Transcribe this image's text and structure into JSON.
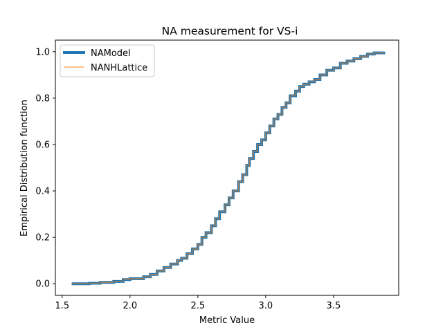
{
  "chart_data": {
    "type": "line",
    "title": "NA measurement for VS-i",
    "xlabel": "Metric Value",
    "ylabel": "Empirical Distribution function",
    "xlim": [
      1.45,
      3.98
    ],
    "ylim": [
      -0.05,
      1.05
    ],
    "xticks": [
      1.5,
      2.0,
      2.5,
      3.0,
      3.5
    ],
    "xtick_labels": [
      "1.5",
      "2.0",
      "2.5",
      "3.0",
      "3.5"
    ],
    "yticks": [
      0.0,
      0.2,
      0.4,
      0.6,
      0.8,
      1.0
    ],
    "ytick_labels": [
      "0.0",
      "0.2",
      "0.4",
      "0.6",
      "0.8",
      "1.0"
    ],
    "grid": false,
    "legend_position": "upper-left",
    "series": [
      {
        "name": "NAModel",
        "color": "#1f77b4",
        "style": "thick-step",
        "x": [
          1.57,
          1.7,
          1.78,
          1.88,
          1.95,
          2.0,
          2.1,
          2.15,
          2.2,
          2.25,
          2.3,
          2.35,
          2.38,
          2.42,
          2.46,
          2.5,
          2.53,
          2.56,
          2.6,
          2.63,
          2.66,
          2.7,
          2.73,
          2.76,
          2.8,
          2.83,
          2.86,
          2.88,
          2.91,
          2.94,
          2.97,
          3.0,
          3.03,
          3.06,
          3.09,
          3.12,
          3.15,
          3.18,
          3.22,
          3.25,
          3.28,
          3.32,
          3.36,
          3.4,
          3.45,
          3.5,
          3.55,
          3.6,
          3.65,
          3.7,
          3.75,
          3.8,
          3.87
        ],
        "y": [
          0.0,
          0.002,
          0.006,
          0.01,
          0.018,
          0.022,
          0.03,
          0.04,
          0.055,
          0.07,
          0.085,
          0.1,
          0.11,
          0.13,
          0.15,
          0.17,
          0.2,
          0.22,
          0.25,
          0.28,
          0.31,
          0.34,
          0.37,
          0.4,
          0.44,
          0.47,
          0.51,
          0.54,
          0.57,
          0.6,
          0.62,
          0.65,
          0.68,
          0.71,
          0.73,
          0.76,
          0.78,
          0.81,
          0.83,
          0.85,
          0.86,
          0.87,
          0.88,
          0.9,
          0.92,
          0.93,
          0.95,
          0.96,
          0.97,
          0.98,
          0.99,
          0.995,
          1.0
        ]
      },
      {
        "name": "NANHLattice",
        "color": "#ff7f0e",
        "style": "thin-step",
        "x": [
          1.57,
          1.7,
          1.78,
          1.88,
          1.95,
          2.0,
          2.1,
          2.15,
          2.2,
          2.25,
          2.3,
          2.35,
          2.38,
          2.42,
          2.46,
          2.5,
          2.53,
          2.56,
          2.6,
          2.63,
          2.66,
          2.7,
          2.73,
          2.76,
          2.8,
          2.83,
          2.86,
          2.88,
          2.91,
          2.94,
          2.97,
          3.0,
          3.03,
          3.06,
          3.09,
          3.12,
          3.15,
          3.18,
          3.22,
          3.25,
          3.28,
          3.32,
          3.36,
          3.4,
          3.45,
          3.5,
          3.55,
          3.6,
          3.65,
          3.7,
          3.75,
          3.8,
          3.87
        ],
        "y": [
          0.0,
          0.002,
          0.006,
          0.01,
          0.018,
          0.022,
          0.03,
          0.04,
          0.055,
          0.07,
          0.085,
          0.1,
          0.11,
          0.13,
          0.15,
          0.17,
          0.2,
          0.22,
          0.25,
          0.28,
          0.31,
          0.34,
          0.37,
          0.4,
          0.44,
          0.47,
          0.51,
          0.54,
          0.57,
          0.6,
          0.62,
          0.65,
          0.68,
          0.71,
          0.73,
          0.76,
          0.78,
          0.81,
          0.83,
          0.85,
          0.86,
          0.87,
          0.88,
          0.9,
          0.92,
          0.93,
          0.95,
          0.96,
          0.97,
          0.98,
          0.99,
          0.995,
          1.0
        ]
      }
    ]
  }
}
